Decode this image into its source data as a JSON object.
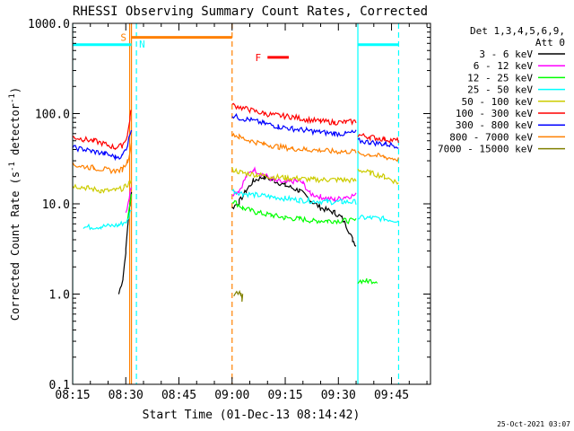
{
  "chart_data": {
    "type": "line",
    "title": "RHESSI Observing Summary Count Rates, Corrected",
    "xlabel": "Start Time (01-Dec-13 08:14:42)",
    "ylabel": "Corrected Count Rate (s",
    "ylabel_sup": "-1",
    "ylabel_rest": " detector",
    "ylabel_sup2": "-1",
    "ylabel_end": ")",
    "yscale": "log",
    "ylim": [
      0.1,
      1000.0
    ],
    "xlim_minutes": [
      0,
      101
    ],
    "y_ticks": [
      {
        "value": 1000.0,
        "label": "1000.0"
      },
      {
        "value": 100.0,
        "label": "100.0"
      },
      {
        "value": 10.0,
        "label": "10.0"
      },
      {
        "value": 1.0,
        "label": "1.0"
      },
      {
        "value": 0.1,
        "label": "0.1"
      }
    ],
    "x_ticks": [
      {
        "value": 0,
        "label": "08:15"
      },
      {
        "value": 15,
        "label": "08:30"
      },
      {
        "value": 30,
        "label": "08:45"
      },
      {
        "value": 45,
        "label": "09:00"
      },
      {
        "value": 60,
        "label": "09:15"
      },
      {
        "value": 75,
        "label": "09:30"
      },
      {
        "value": 90,
        "label": "09:45"
      }
    ],
    "legend_header": [
      "Det 1,3,4,5,6,9,",
      "Att 0"
    ],
    "legend_position": "right",
    "series": [
      {
        "name": "3 - 6 keV",
        "color": "#000000",
        "segments": [
          {
            "points": [
              [
                13.0,
                1.0
              ],
              [
                14.2,
                1.5
              ],
              [
                15.0,
                3.0
              ],
              [
                15.6,
                6.0
              ],
              [
                16.2,
                10.0
              ],
              [
                16.6,
                14.0
              ]
            ]
          },
          {
            "points": [
              [
                45.0,
                9.0
              ],
              [
                47.0,
                10.5
              ],
              [
                49.0,
                14.0
              ],
              [
                51.0,
                18.0
              ],
              [
                54.0,
                20.0
              ],
              [
                57.0,
                18.0
              ],
              [
                60.0,
                16.0
              ],
              [
                64.0,
                14.0
              ],
              [
                67.0,
                11.0
              ],
              [
                70.0,
                9.0
              ],
              [
                74.0,
                8.0
              ],
              [
                76.0,
                7.0
              ],
              [
                78.0,
                5.0
              ],
              [
                79.0,
                4.0
              ],
              [
                80.0,
                3.5
              ]
            ]
          }
        ]
      },
      {
        "name": "6 - 12 keV",
        "color": "#ff00ff",
        "segments": [
          {
            "points": [
              [
                15.0,
                8.0
              ],
              [
                16.0,
                12.0
              ],
              [
                16.6,
                16.0
              ]
            ]
          },
          {
            "points": [
              [
                45.0,
                13.0
              ],
              [
                47.0,
                14.0
              ],
              [
                49.0,
                20.0
              ],
              [
                51.0,
                24.0
              ],
              [
                54.0,
                21.0
              ],
              [
                57.0,
                18.0
              ],
              [
                60.0,
                17.0
              ],
              [
                63.0,
                18.0
              ],
              [
                65.0,
                17.0
              ],
              [
                67.0,
                13.0
              ],
              [
                70.0,
                12.0
              ],
              [
                74.0,
                11.0
              ],
              [
                77.0,
                12.0
              ],
              [
                80.0,
                12.5
              ]
            ]
          }
        ]
      },
      {
        "name": "12 - 25 keV",
        "color": "#00ff00",
        "segments": [
          {
            "points": [
              [
                15.5,
                7.0
              ],
              [
                16.6,
                13.0
              ]
            ]
          },
          {
            "points": [
              [
                45.0,
                11.0
              ],
              [
                48.0,
                9.0
              ],
              [
                52.0,
                8.0
              ],
              [
                56.0,
                7.5
              ],
              [
                60.0,
                7.0
              ],
              [
                64.0,
                6.8
              ],
              [
                68.0,
                6.5
              ],
              [
                72.0,
                6.5
              ],
              [
                76.0,
                6.5
              ],
              [
                80.0,
                6.5
              ]
            ]
          },
          {
            "points": [
              [
                80.5,
                1.4
              ],
              [
                83.0,
                1.4
              ],
              [
                86.0,
                1.4
              ]
            ]
          }
        ]
      },
      {
        "name": "25 - 50 keV",
        "color": "#00ffff",
        "segments": [
          {
            "points": [
              [
                3.0,
                5.5
              ],
              [
                8.0,
                5.6
              ],
              [
                13.0,
                5.8
              ],
              [
                15.5,
                6.5
              ],
              [
                16.6,
                9.0
              ]
            ]
          },
          {
            "points": [
              [
                45.0,
                14.0
              ],
              [
                48.0,
                13.0
              ],
              [
                52.0,
                12.5
              ],
              [
                56.0,
                12.0
              ],
              [
                60.0,
                11.5
              ],
              [
                64.0,
                11.0
              ],
              [
                68.0,
                10.8
              ],
              [
                72.0,
                10.5
              ],
              [
                76.0,
                10.5
              ],
              [
                80.0,
                10.5
              ]
            ]
          },
          {
            "points": [
              [
                80.5,
                7.0
              ],
              [
                84.0,
                7.0
              ],
              [
                88.0,
                6.8
              ],
              [
                92.0,
                6.5
              ]
            ]
          }
        ]
      },
      {
        "name": "50 - 100 keV",
        "color": "#cccc00",
        "segments": [
          {
            "points": [
              [
                0.0,
                16.0
              ],
              [
                4.0,
                15.0
              ],
              [
                8.0,
                14.0
              ],
              [
                12.0,
                14.0
              ],
              [
                14.5,
                15.0
              ],
              [
                16.6,
                18.0
              ]
            ]
          },
          {
            "points": [
              [
                45.0,
                24.0
              ],
              [
                48.0,
                22.0
              ],
              [
                52.0,
                21.0
              ],
              [
                56.0,
                20.0
              ],
              [
                60.0,
                19.5
              ],
              [
                64.0,
                19.0
              ],
              [
                68.0,
                18.5
              ],
              [
                72.0,
                18.5
              ],
              [
                76.0,
                18.5
              ],
              [
                80.0,
                18.0
              ]
            ]
          },
          {
            "points": [
              [
                80.5,
                24.0
              ],
              [
                84.0,
                22.0
              ],
              [
                88.0,
                20.0
              ],
              [
                92.0,
                17.0
              ]
            ]
          }
        ]
      },
      {
        "name": "100 - 300 keV",
        "color": "#ff0000",
        "segments": [
          {
            "points": [
              [
                0.0,
                55.0
              ],
              [
                3.0,
                52.0
              ],
              [
                6.0,
                50.0
              ],
              [
                9.0,
                46.0
              ],
              [
                12.0,
                42.0
              ],
              [
                14.0,
                44.0
              ],
              [
                15.5,
                58.0
              ],
              [
                16.2,
                90.0
              ],
              [
                16.6,
                115.0
              ]
            ]
          },
          {
            "points": [
              [
                45.0,
                125.0
              ],
              [
                47.0,
                118.0
              ],
              [
                50.0,
                110.0
              ],
              [
                54.0,
                100.0
              ],
              [
                58.0,
                95.0
              ],
              [
                62.0,
                92.0
              ],
              [
                66.0,
                86.0
              ],
              [
                70.0,
                82.0
              ],
              [
                74.0,
                80.0
              ],
              [
                77.0,
                80.0
              ],
              [
                80.0,
                82.0
              ]
            ]
          },
          {
            "points": [
              [
                80.5,
                58.0
              ],
              [
                84.0,
                55.0
              ],
              [
                88.0,
                52.0
              ],
              [
                92.0,
                50.0
              ]
            ]
          }
        ]
      },
      {
        "name": "300 - 800 keV",
        "color": "#0000ff",
        "segments": [
          {
            "points": [
              [
                0.0,
                42.0
              ],
              [
                3.0,
                40.0
              ],
              [
                6.0,
                38.0
              ],
              [
                9.0,
                36.0
              ],
              [
                12.0,
                33.0
              ],
              [
                14.0,
                34.0
              ],
              [
                15.5,
                45.0
              ],
              [
                16.6,
                70.0
              ]
            ]
          },
          {
            "points": [
              [
                45.0,
                95.0
              ],
              [
                47.0,
                90.0
              ],
              [
                50.0,
                85.0
              ],
              [
                54.0,
                78.0
              ],
              [
                58.0,
                72.0
              ],
              [
                62.0,
                68.0
              ],
              [
                66.0,
                65.0
              ],
              [
                70.0,
                62.0
              ],
              [
                74.0,
                60.0
              ],
              [
                77.0,
                60.0
              ],
              [
                80.0,
                62.0
              ]
            ]
          },
          {
            "points": [
              [
                80.5,
                50.0
              ],
              [
                84.0,
                48.0
              ],
              [
                88.0,
                46.0
              ],
              [
                92.0,
                44.0
              ]
            ]
          }
        ]
      },
      {
        "name": "800 - 7000 keV",
        "color": "#ff8000",
        "segments": [
          {
            "points": [
              [
                0.0,
                27.0
              ],
              [
                3.0,
                26.0
              ],
              [
                6.0,
                25.0
              ],
              [
                9.0,
                24.0
              ],
              [
                12.0,
                23.0
              ],
              [
                14.0,
                24.0
              ],
              [
                15.5,
                30.0
              ],
              [
                16.6,
                45.0
              ]
            ]
          },
          {
            "points": [
              [
                45.0,
                60.0
              ],
              [
                47.0,
                55.0
              ],
              [
                50.0,
                50.0
              ],
              [
                54.0,
                46.0
              ],
              [
                58.0,
                43.0
              ],
              [
                62.0,
                41.0
              ],
              [
                66.0,
                40.0
              ],
              [
                70.0,
                39.0
              ],
              [
                74.0,
                38.0
              ],
              [
                77.0,
                38.0
              ],
              [
                80.0,
                38.0
              ]
            ]
          },
          {
            "points": [
              [
                80.5,
                36.0
              ],
              [
                84.0,
                35.0
              ],
              [
                88.0,
                33.0
              ],
              [
                92.0,
                31.0
              ]
            ]
          }
        ]
      },
      {
        "name": "7000 - 15000 keV",
        "color": "#808000",
        "segments": [
          {
            "points": [
              [
                45.5,
                1.0
              ],
              [
                47.5,
                1.0
              ],
              [
                47.8,
                0.85
              ],
              [
                48.0,
                1.0
              ]
            ]
          }
        ]
      }
    ],
    "annotations": {
      "attenuator_state_bars": [
        {
          "start": 0.0,
          "end": 16.6,
          "value": 580.0,
          "color": "#00ffff"
        },
        {
          "start": 80.5,
          "end": 92.0,
          "value": 580.0,
          "color": "#00ffff"
        }
      ],
      "flag_bars": [
        {
          "label": "S",
          "start": 16.6,
          "end": 45.0,
          "value": 700.0,
          "color": "#ff8000",
          "label_at": 13.5
        },
        {
          "label": "F",
          "start": 55.0,
          "end": 61.0,
          "value": 420.0,
          "color": "#ff0000",
          "label_at": 51.5
        }
      ],
      "flag_texts": [
        {
          "label": "N",
          "at": 18.0,
          "value": 590.0,
          "color": "#00ffff"
        }
      ],
      "vertical_lines": [
        {
          "at": 0.0,
          "color": "#00ffff",
          "style": "solid"
        },
        {
          "at": 16.1,
          "color": "#ff8000",
          "style": "solid"
        },
        {
          "at": 16.6,
          "color": "#ff8000",
          "style": "solid"
        },
        {
          "at": 18.0,
          "color": "#00ffff",
          "style": "dashed"
        },
        {
          "at": 45.0,
          "color": "#ff8000",
          "style": "dashed"
        },
        {
          "at": 80.5,
          "color": "#00ffff",
          "style": "solid"
        },
        {
          "at": 92.0,
          "color": "#00ffff",
          "style": "dashed"
        }
      ]
    },
    "footer_date": "25-Oct-2021 03:07"
  }
}
